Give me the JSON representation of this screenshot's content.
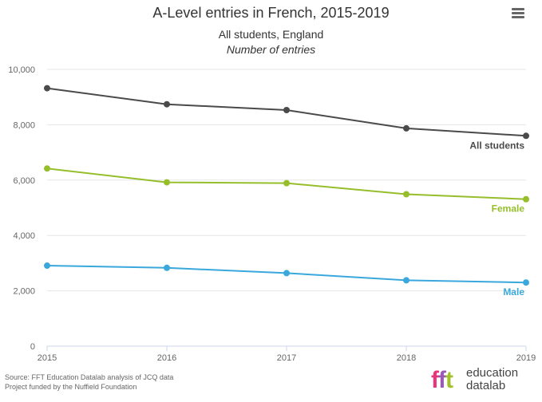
{
  "header": {
    "title": "A-Level entries in French, 2015-2019",
    "subtitle": "All students, England",
    "subtitle2": "Number of entries",
    "menu_icon": "hamburger-menu-icon"
  },
  "chart_data": {
    "type": "line",
    "title": "A-Level entries in French, 2015-2019",
    "subtitle": "All students, England",
    "ylabel": "Number of entries",
    "x": [
      "2015",
      "2016",
      "2017",
      "2018",
      "2019"
    ],
    "ylim": [
      0,
      10000
    ],
    "yticks": [
      "0",
      "2,000",
      "4,000",
      "6,000",
      "8,000",
      "10,000"
    ],
    "ytick_values": [
      0,
      2000,
      4000,
      6000,
      8000,
      10000
    ],
    "grid": true,
    "series": [
      {
        "name": "All students",
        "color": "#4a4a4a",
        "values": [
          9320,
          8740,
          8530,
          7870,
          7600
        ]
      },
      {
        "name": "Female",
        "color": "#96be2a",
        "values": [
          6420,
          5920,
          5890,
          5490,
          5310
        ]
      },
      {
        "name": "Male",
        "color": "#3aa8dc",
        "values": [
          2910,
          2830,
          2640,
          2380,
          2300
        ]
      }
    ]
  },
  "footer": {
    "source": "Source: FFT Education Datalab analysis of JCQ data",
    "funding": "Project funded by the Nuffield Foundation"
  },
  "logo": {
    "fft_f1": "f",
    "fft_f2": "f",
    "fft_t": "t",
    "word1": "education",
    "word2": "datalab"
  }
}
